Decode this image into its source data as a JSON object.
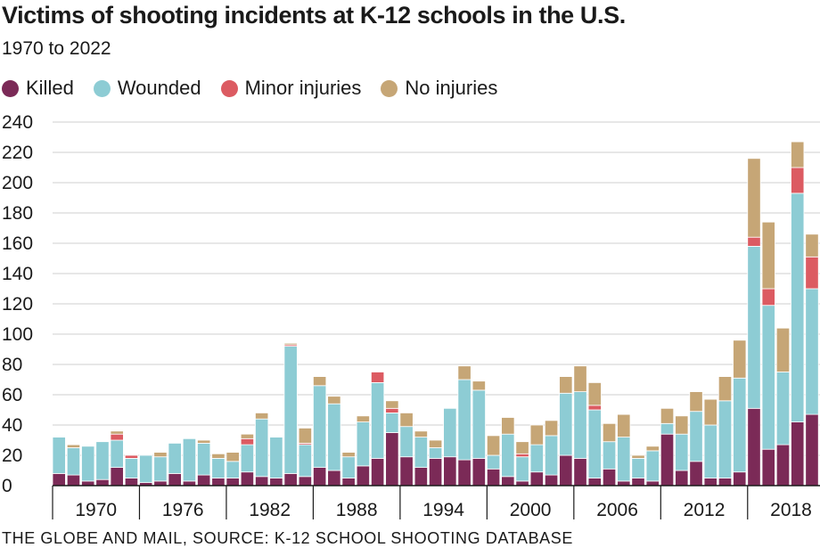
{
  "chart_data": {
    "type": "bar",
    "stacked": true,
    "title": "Victims of shooting incidents at K-12 schools in the U.S.",
    "subtitle": "1970 to 2022",
    "source": "THE GLOBE AND MAIL, SOURCE: K-12 SCHOOL SHOOTING DATABASE",
    "ylim": [
      0,
      240
    ],
    "yticks": [
      0,
      20,
      40,
      60,
      80,
      100,
      120,
      140,
      160,
      180,
      200,
      220,
      240
    ],
    "grid": true,
    "legend_position": "top",
    "x": [
      1970,
      1971,
      1972,
      1973,
      1974,
      1975,
      1976,
      1977,
      1978,
      1979,
      1980,
      1981,
      1982,
      1983,
      1984,
      1985,
      1986,
      1987,
      1988,
      1989,
      1990,
      1991,
      1992,
      1993,
      1994,
      1995,
      1996,
      1997,
      1998,
      1999,
      2000,
      2001,
      2002,
      2003,
      2004,
      2005,
      2006,
      2007,
      2008,
      2009,
      2010,
      2011,
      2012,
      2013,
      2014,
      2015,
      2016,
      2017,
      2018,
      2019,
      2020,
      2021,
      2022
    ],
    "xtick_labels": [
      "1970",
      "1976",
      "1982",
      "1988",
      "1994",
      "2000",
      "2006",
      "2012",
      "2018"
    ],
    "series": [
      {
        "name": "Killed",
        "color": "#7b2a57",
        "values": [
          8,
          7,
          3,
          4,
          12,
          5,
          2,
          3,
          8,
          3,
          7,
          5,
          5,
          9,
          6,
          5,
          8,
          6,
          12,
          10,
          5,
          13,
          18,
          35,
          19,
          12,
          18,
          19,
          17,
          18,
          11,
          6,
          3,
          9,
          7,
          20,
          18,
          5,
          11,
          3,
          5,
          3,
          34,
          10,
          16,
          5,
          5,
          9,
          51,
          24,
          27,
          42,
          47
        ]
      },
      {
        "name": "Wounded",
        "color": "#8dccd4",
        "values": [
          24,
          18,
          23,
          25,
          18,
          13,
          18,
          16,
          20,
          28,
          21,
          13,
          11,
          18,
          38,
          27,
          84,
          21,
          54,
          44,
          14,
          29,
          50,
          13,
          20,
          20,
          7,
          32,
          53,
          45,
          9,
          28,
          16,
          18,
          26,
          41,
          44,
          45,
          18,
          29,
          13,
          20,
          7,
          24,
          33,
          35,
          51,
          62,
          107,
          95,
          48,
          151,
          83
        ]
      },
      {
        "name": "Minor injuries",
        "color": "#dc5b62",
        "values": [
          0,
          0,
          0,
          0,
          4,
          2,
          0,
          0,
          0,
          0,
          0,
          0,
          0,
          4,
          0,
          0,
          1,
          1,
          0,
          0,
          0,
          0,
          7,
          3,
          0,
          0,
          0,
          0,
          0,
          0,
          0,
          0,
          2,
          0,
          0,
          0,
          0,
          3,
          0,
          0,
          0,
          0,
          0,
          0,
          0,
          0,
          0,
          0,
          6,
          11,
          0,
          17,
          21
        ]
      },
      {
        "name": "No injuries",
        "color": "#c6a676",
        "values": [
          0,
          2,
          0,
          0,
          2,
          0,
          0,
          3,
          0,
          0,
          2,
          3,
          6,
          3,
          4,
          0,
          1,
          10,
          6,
          5,
          3,
          4,
          0,
          5,
          9,
          4,
          5,
          0,
          9,
          6,
          13,
          11,
          8,
          13,
          10,
          11,
          17,
          15,
          12,
          15,
          2,
          3,
          10,
          12,
          13,
          17,
          16,
          25,
          52,
          44,
          29,
          17,
          15
        ]
      }
    ]
  }
}
